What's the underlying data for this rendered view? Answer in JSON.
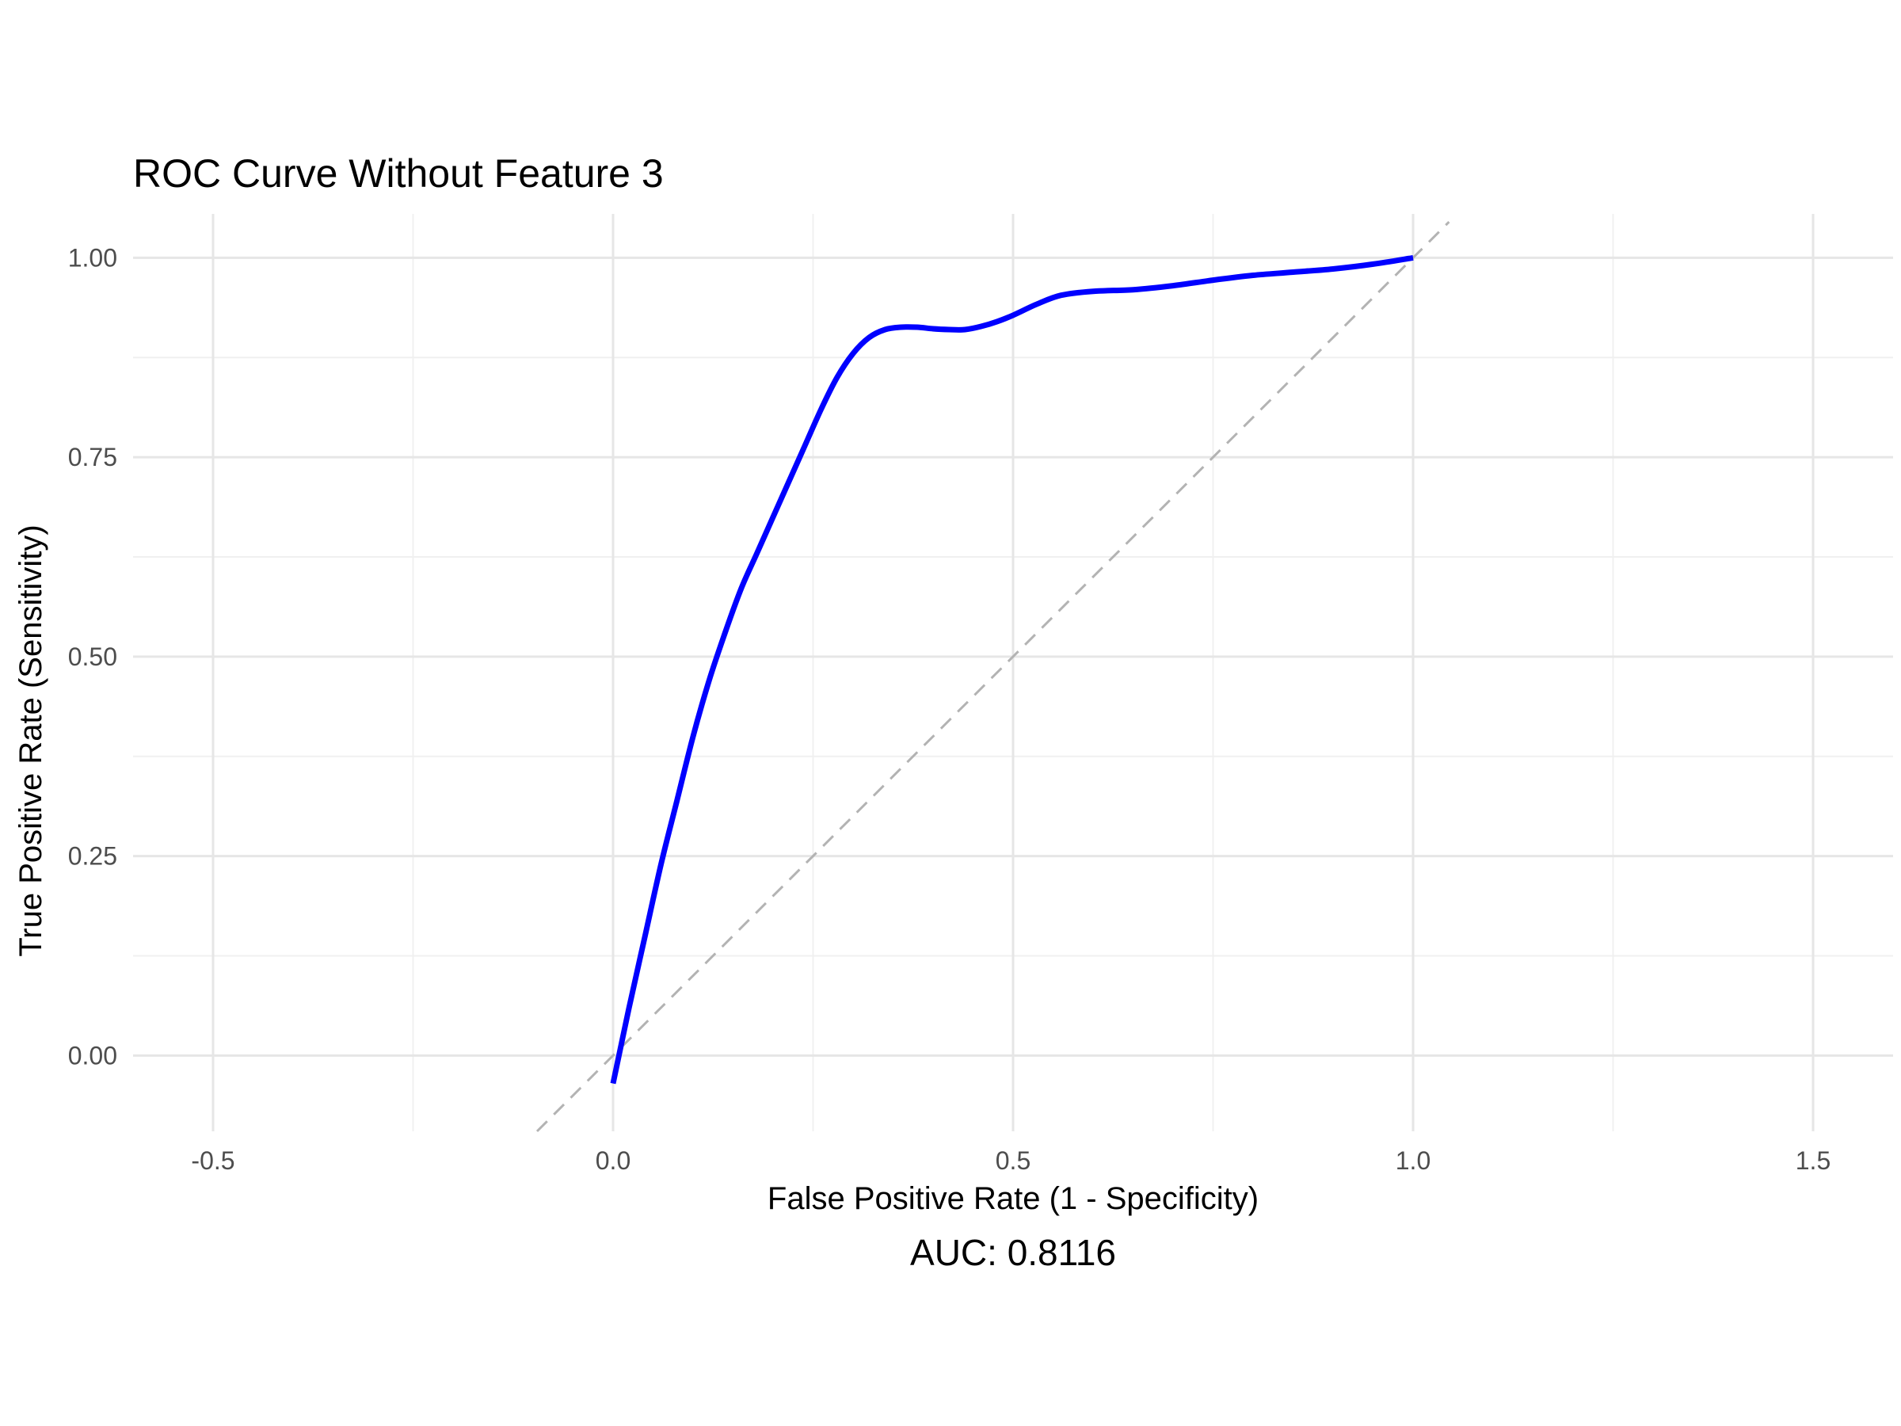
{
  "chart_data": {
    "type": "line",
    "title": "ROC Curve Without Feature 3",
    "xlabel": "False Positive Rate (1 - Specificity)",
    "ylabel": "True Positive Rate (Sensitivity)",
    "caption": "AUC: 0.8116",
    "xlim": [
      -0.6,
      1.6
    ],
    "ylim": [
      -0.095,
      1.055
    ],
    "x_ticks": [
      -0.5,
      0.0,
      0.5,
      1.0,
      1.5
    ],
    "x_tick_labels": [
      "-0.5",
      "0.0",
      "0.5",
      "1.0",
      "1.5"
    ],
    "y_ticks": [
      0.0,
      0.25,
      0.5,
      0.75,
      1.0
    ],
    "y_tick_labels": [
      "0.00",
      "0.25",
      "0.50",
      "0.75",
      "1.00"
    ],
    "grid": true,
    "legend": "none",
    "series": [
      {
        "color": "#0000ff",
        "style": "solid",
        "x": [
          0.0,
          0.02,
          0.04,
          0.06,
          0.08,
          0.1,
          0.12,
          0.14,
          0.16,
          0.18,
          0.2,
          0.22,
          0.24,
          0.26,
          0.28,
          0.3,
          0.32,
          0.34,
          0.36,
          0.38,
          0.4,
          0.42,
          0.44,
          0.46,
          0.48,
          0.5,
          0.53,
          0.56,
          0.6,
          0.65,
          0.7,
          0.75,
          0.8,
          0.85,
          0.9,
          0.95,
          1.0
        ],
        "y": [
          -0.035,
          0.06,
          0.15,
          0.24,
          0.32,
          0.4,
          0.47,
          0.53,
          0.585,
          0.63,
          0.675,
          0.72,
          0.765,
          0.81,
          0.85,
          0.88,
          0.9,
          0.91,
          0.913,
          0.913,
          0.911,
          0.91,
          0.91,
          0.914,
          0.92,
          0.928,
          0.942,
          0.953,
          0.958,
          0.96,
          0.965,
          0.972,
          0.978,
          0.982,
          0.986,
          0.992,
          1.0
        ]
      },
      {
        "color": "#b3b3b3",
        "style": "dashed",
        "x": [
          -0.095,
          1.045
        ],
        "y": [
          -0.095,
          1.045
        ]
      }
    ]
  }
}
